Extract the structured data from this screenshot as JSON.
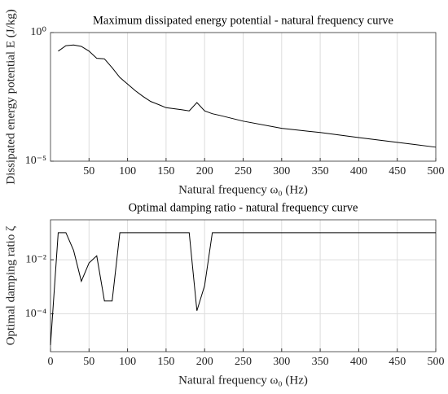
{
  "chart_data": [
    {
      "type": "line",
      "title": "Maximum dissipated energy potential - natural frequency curve",
      "x_label": "Natural frequency ω₀ (Hz)",
      "y_label": "Dissipated energy potential E (J/kg)",
      "log_y": true,
      "grid": true,
      "xlim": [
        0,
        500
      ],
      "xticks": [
        50,
        100,
        150,
        200,
        250,
        300,
        350,
        400,
        450,
        500
      ],
      "ylim": [
        1e-05,
        1
      ],
      "yticks": [
        {
          "value": 1,
          "label": "10⁰"
        },
        {
          "value": 1e-05,
          "label": "10⁻⁵"
        }
      ],
      "series": [
        {
          "color": "#000000",
          "x": [
            10,
            20,
            30,
            40,
            50,
            60,
            70,
            80,
            90,
            100,
            110,
            120,
            130,
            140,
            150,
            160,
            170,
            180,
            190,
            200,
            210,
            220,
            250,
            300,
            350,
            400,
            450,
            500
          ],
          "values": [
            0.19,
            0.31,
            0.33,
            0.29,
            0.19,
            0.1,
            0.095,
            0.043,
            0.018,
            0.01,
            0.0055,
            0.0033,
            0.0021,
            0.0016,
            0.0012,
            0.0011,
            0.001,
            0.0009,
            0.0019,
            0.0009,
            0.0007,
            0.0006,
            0.00036,
            0.00019,
            0.00013,
            8.3e-05,
            5.4e-05,
            3.5e-05
          ]
        }
      ]
    },
    {
      "type": "line",
      "title": "Optimal damping ratio - natural frequency curve",
      "x_label": "Natural frequency ω₀ (Hz)",
      "y_label": "Optimal damping ratio ζ",
      "log_y": true,
      "grid": true,
      "xlim": [
        0,
        500
      ],
      "xticks": [
        0,
        50,
        100,
        150,
        200,
        250,
        300,
        350,
        400,
        450,
        500
      ],
      "ylim": [
        4e-06,
        0.3
      ],
      "yticks": [
        {
          "value": 0.01,
          "label": "10⁻²"
        },
        {
          "value": 0.0001,
          "label": "10⁻⁴"
        }
      ],
      "series": [
        {
          "color": "#000000",
          "x": [
            0,
            10,
            20,
            30,
            40,
            50,
            60,
            70,
            80,
            90,
            180,
            190,
            200,
            210,
            500
          ],
          "values": [
            7e-06,
            0.1,
            0.1,
            0.022,
            0.0016,
            0.0076,
            0.014,
            0.0003,
            0.0003,
            0.1,
            0.1,
            0.00013,
            0.0011,
            0.1,
            0.1
          ]
        }
      ]
    }
  ]
}
